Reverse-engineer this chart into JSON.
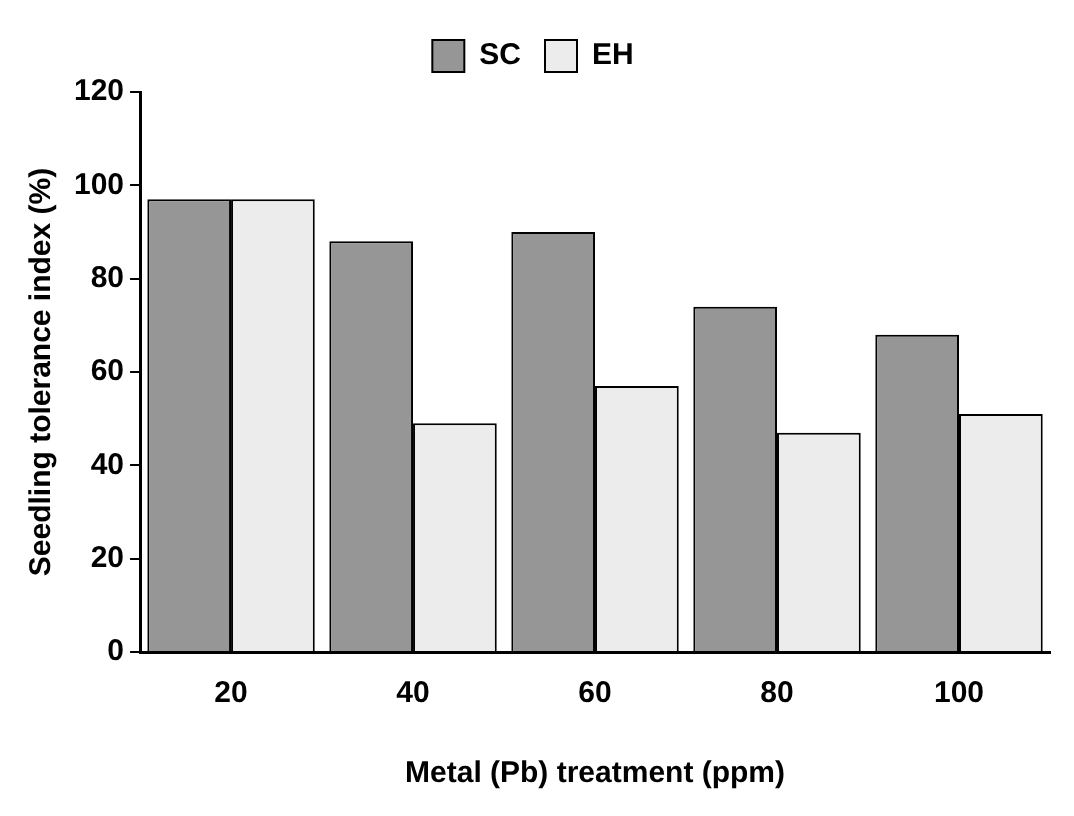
{
  "chart_data": {
    "type": "bar",
    "xlabel": "Metal (Pb) treatment (ppm)",
    "ylabel": "Seedling tolerance index (%)",
    "categories": [
      "20",
      "40",
      "60",
      "80",
      "100"
    ],
    "series": [
      {
        "name": "SC",
        "color": "#969696",
        "values": [
          97,
          88,
          90,
          74,
          68
        ]
      },
      {
        "name": "EH",
        "color": "#ececec",
        "values": [
          97,
          49,
          57,
          47,
          51
        ]
      }
    ],
    "ylim": [
      0,
      120
    ],
    "yticks": [
      0,
      20,
      40,
      60,
      80,
      100,
      120
    ],
    "grid": false,
    "legend": "top"
  }
}
